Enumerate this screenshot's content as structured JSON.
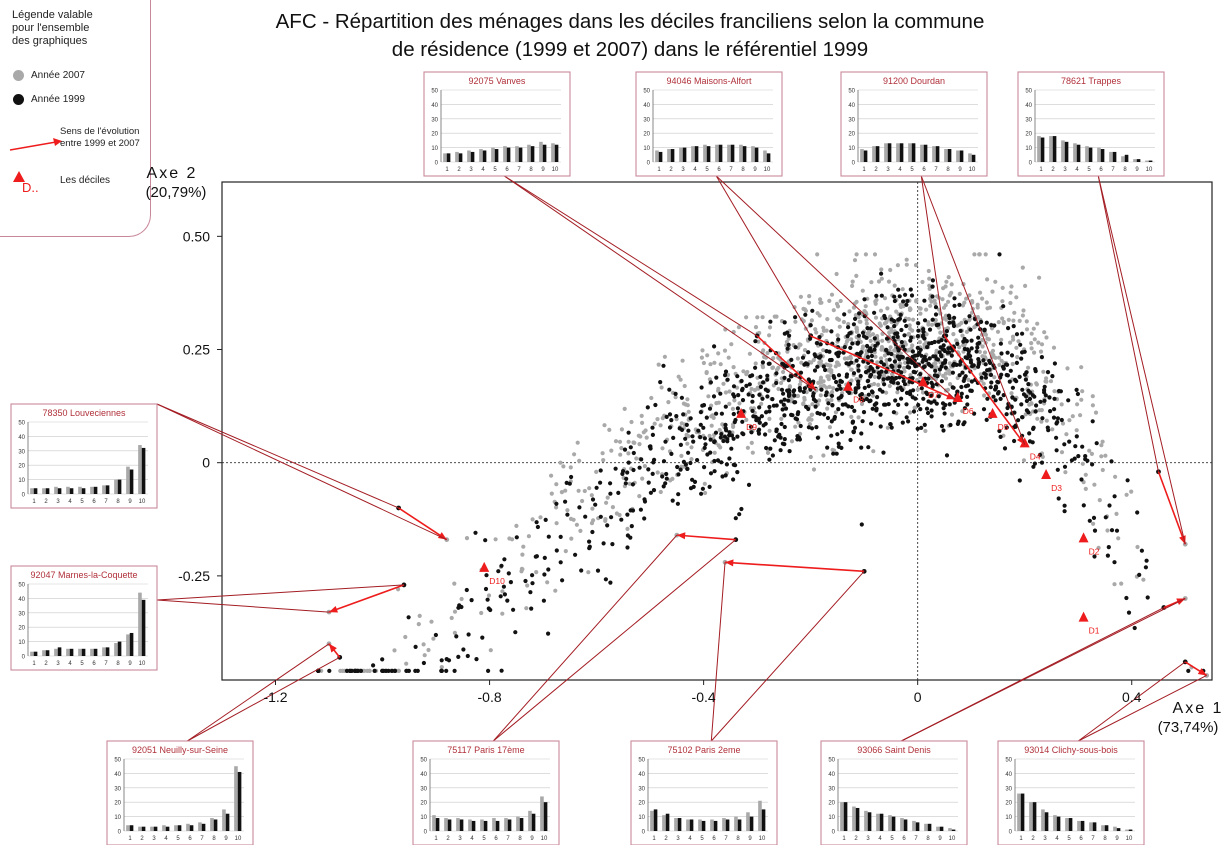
{
  "title_line1": "AFC - Répartition des ménages dans les déciles franciliens selon la commune",
  "title_line2": "de résidence (1999 et 2007) dans le référentiel 1999",
  "legend": {
    "heading": [
      "Légende valable",
      "pour l'ensemble",
      "des graphiques"
    ],
    "year2007": "Année 2007",
    "year1999": "Année 1999",
    "evolution": [
      "Sens de l'évolution",
      "entre 1999 et 2007"
    ],
    "deciles_label": "Les déciles",
    "deciles_marker": "D..",
    "colors": {
      "y2007": "#a9a9a9",
      "y1999": "#111111",
      "arrow": "#ee1c1c",
      "border": "#c9889a"
    }
  },
  "chart_data": {
    "type": "scatter",
    "xlabel": [
      "Axe 1",
      "(73,74%)"
    ],
    "ylabel": [
      "Axe 2",
      "(20,79%)"
    ],
    "xlim": [
      -1.3,
      0.55
    ],
    "ylim": [
      -0.48,
      0.62
    ],
    "x_ticks": [
      "-1.2",
      "-0.8",
      "-0.4",
      "0",
      "0.4"
    ],
    "x_tick_values": [
      -1.2,
      -0.8,
      -0.4,
      0,
      0.4
    ],
    "y_ticks": [
      "0.50",
      "0.25",
      "0",
      "-0.25"
    ],
    "y_tick_values": [
      0.5,
      0.25,
      0,
      -0.25
    ],
    "origin_lines": "dotted",
    "deciles": [
      {
        "label": "D1",
        "x": 0.31,
        "y": -0.34
      },
      {
        "label": "D2",
        "x": 0.31,
        "y": -0.165
      },
      {
        "label": "D3",
        "x": 0.24,
        "y": -0.025
      },
      {
        "label": "D4",
        "x": 0.2,
        "y": 0.045
      },
      {
        "label": "D5",
        "x": 0.14,
        "y": 0.11
      },
      {
        "label": "D6",
        "x": 0.075,
        "y": 0.145
      },
      {
        "label": "D7",
        "x": 0.01,
        "y": 0.18
      },
      {
        "label": "D8",
        "x": -0.13,
        "y": 0.17
      },
      {
        "label": "D9",
        "x": -0.33,
        "y": 0.11
      },
      {
        "label": "D10",
        "x": -0.81,
        "y": -0.23
      }
    ],
    "communes": [
      {
        "name": "92075 Vanves",
        "x1999": -0.3,
        "y1999": 0.28,
        "x2007": -0.19,
        "y2007": 0.16
      },
      {
        "name": "94046 Maisons-Alfort",
        "x1999": -0.2,
        "y1999": 0.28,
        "x2007": 0.07,
        "y2007": 0.14
      },
      {
        "name": "91200 Dourdan",
        "x1999": 0.05,
        "y1999": 0.28,
        "x2007": 0.2,
        "y2007": 0.04
      },
      {
        "name": "78621 Trappes",
        "x1999": 0.45,
        "y1999": -0.02,
        "x2007": 0.5,
        "y2007": -0.18
      },
      {
        "name": "78350 Louveciennes",
        "x1999": -0.97,
        "y1999": -0.1,
        "x2007": -0.88,
        "y2007": -0.17
      },
      {
        "name": "92047 Marnes-la-Coquette",
        "x1999": -0.96,
        "y1999": -0.27,
        "x2007": -1.1,
        "y2007": -0.33
      },
      {
        "name": "92051 Neuilly-sur-Seine",
        "x1999": -1.08,
        "y1999": -0.43,
        "x2007": -1.1,
        "y2007": -0.4
      },
      {
        "name": "75117 Paris 17ème",
        "x1999": -0.34,
        "y1999": -0.17,
        "x2007": -0.45,
        "y2007": -0.16
      },
      {
        "name": "75102 Paris 2eme",
        "x1999": -0.1,
        "y1999": -0.24,
        "x2007": -0.36,
        "y2007": -0.22
      },
      {
        "name": "93066 Saint Denis",
        "x1999": 0.46,
        "y1999": -0.32,
        "x2007": 0.5,
        "y2007": -0.3
      },
      {
        "name": "93014 Clichy-sous-bois",
        "x1999": 0.5,
        "y1999": -0.44,
        "x2007": 0.54,
        "y2007": -0.47
      }
    ],
    "inset_axis": {
      "yticks": [
        "0",
        "10",
        "20",
        "30",
        "40",
        "50"
      ],
      "xticks": [
        "1",
        "2",
        "3",
        "4",
        "5",
        "6",
        "7",
        "8",
        "9",
        "10"
      ]
    },
    "insets": [
      {
        "name": "92075 Vanves",
        "y2007": [
          6,
          7,
          8,
          9,
          10,
          11,
          11,
          12,
          14,
          13
        ],
        "y1999": [
          6,
          6,
          7,
          8,
          9,
          10,
          10,
          11,
          12,
          12
        ]
      },
      {
        "name": "94046 Maisons-Alfort",
        "y2007": [
          8,
          9,
          10,
          11,
          12,
          12,
          12,
          12,
          11,
          8
        ],
        "y1999": [
          7,
          9,
          10,
          11,
          11,
          12,
          12,
          11,
          10,
          6
        ]
      },
      {
        "name": "91200 Dourdan",
        "y2007": [
          9,
          11,
          13,
          13,
          13,
          12,
          11,
          9,
          8,
          6
        ],
        "y1999": [
          8,
          11,
          13,
          13,
          13,
          12,
          11,
          9,
          8,
          5
        ]
      },
      {
        "name": "78621 Trappes",
        "y2007": [
          18,
          18,
          15,
          13,
          11,
          10,
          7,
          4,
          2,
          1
        ],
        "y1999": [
          17,
          18,
          14,
          12,
          10,
          9,
          7,
          5,
          2,
          1
        ]
      },
      {
        "name": "78350 Louveciennes",
        "y2007": [
          4,
          4,
          5,
          5,
          5,
          5,
          6,
          10,
          19,
          34
        ],
        "y1999": [
          4,
          4,
          4,
          4,
          4,
          5,
          6,
          10,
          17,
          32
        ]
      },
      {
        "name": "92047 Marnes-la-Coquette",
        "y2007": [
          3,
          4,
          5,
          5,
          5,
          5,
          6,
          9,
          15,
          44
        ],
        "y1999": [
          3,
          4,
          6,
          5,
          5,
          5,
          6,
          10,
          16,
          39
        ]
      },
      {
        "name": "92051 Neuilly-sur-Seine",
        "y2007": [
          4,
          3,
          3,
          4,
          4,
          5,
          6,
          9,
          15,
          45
        ],
        "y1999": [
          4,
          3,
          3,
          3,
          4,
          4,
          5,
          8,
          12,
          41
        ]
      },
      {
        "name": "75117 Paris 17ème",
        "y2007": [
          11,
          9,
          9,
          8,
          8,
          9,
          9,
          10,
          14,
          24
        ],
        "y1999": [
          9,
          8,
          8,
          7,
          7,
          7,
          8,
          9,
          12,
          20
        ]
      },
      {
        "name": "75102 Paris 2eme",
        "y2007": [
          14,
          11,
          9,
          8,
          8,
          8,
          9,
          10,
          13,
          21
        ],
        "y1999": [
          15,
          12,
          9,
          8,
          7,
          7,
          8,
          8,
          10,
          15
        ]
      },
      {
        "name": "93066 Saint Denis",
        "y2007": [
          20,
          17,
          14,
          12,
          11,
          9,
          7,
          5,
          3,
          2
        ],
        "y1999": [
          20,
          16,
          13,
          12,
          10,
          8,
          6,
          5,
          3,
          1
        ]
      },
      {
        "name": "93014 Clichy-sous-bois",
        "y2007": [
          26,
          20,
          15,
          11,
          9,
          7,
          6,
          4,
          3,
          1
        ],
        "y1999": [
          26,
          20,
          13,
          10,
          9,
          7,
          6,
          4,
          2,
          1
        ]
      }
    ]
  }
}
